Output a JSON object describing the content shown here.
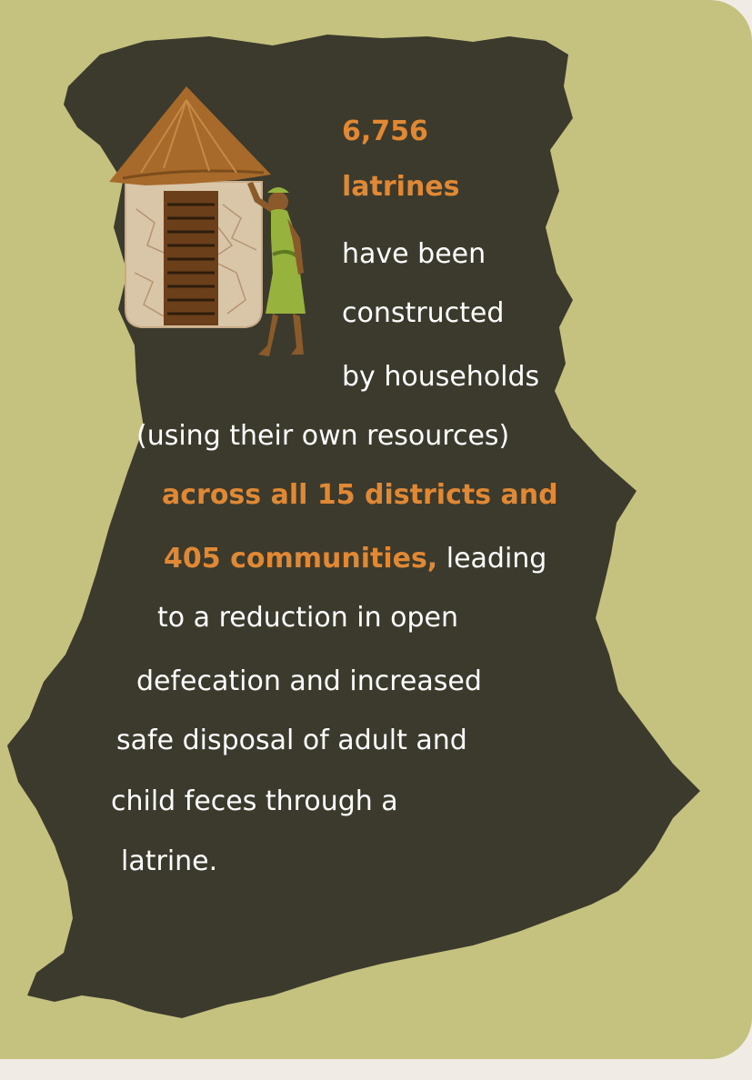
{
  "colors": {
    "background": "#c5c27f",
    "outer_margin": "#f0ebe4",
    "map_fill": "#3b3a2d",
    "text": "#ffffff",
    "highlight": "#e08833",
    "hut_roof": "#a76a2a",
    "hut_wall": "#d9c6a8",
    "woman_dress": "#98b33d"
  },
  "icons": {
    "map": "country-map-silhouette",
    "hut": "latrine-hut-icon",
    "person": "woman-figure-icon"
  },
  "text": {
    "line1": "6,756",
    "line2": "latrines",
    "line3": "have been",
    "line4": "constructed",
    "line5": "by households",
    "line6": "(using their own resources)",
    "line7": "across all 15 districts and",
    "line8_highlight": "405 communities,",
    "line8_rest": " leading",
    "line9": "to a reduction in open",
    "line10": "defecation and increased",
    "line11": "safe disposal of adult and",
    "line12": "child feces through a",
    "line13": "latrine."
  }
}
